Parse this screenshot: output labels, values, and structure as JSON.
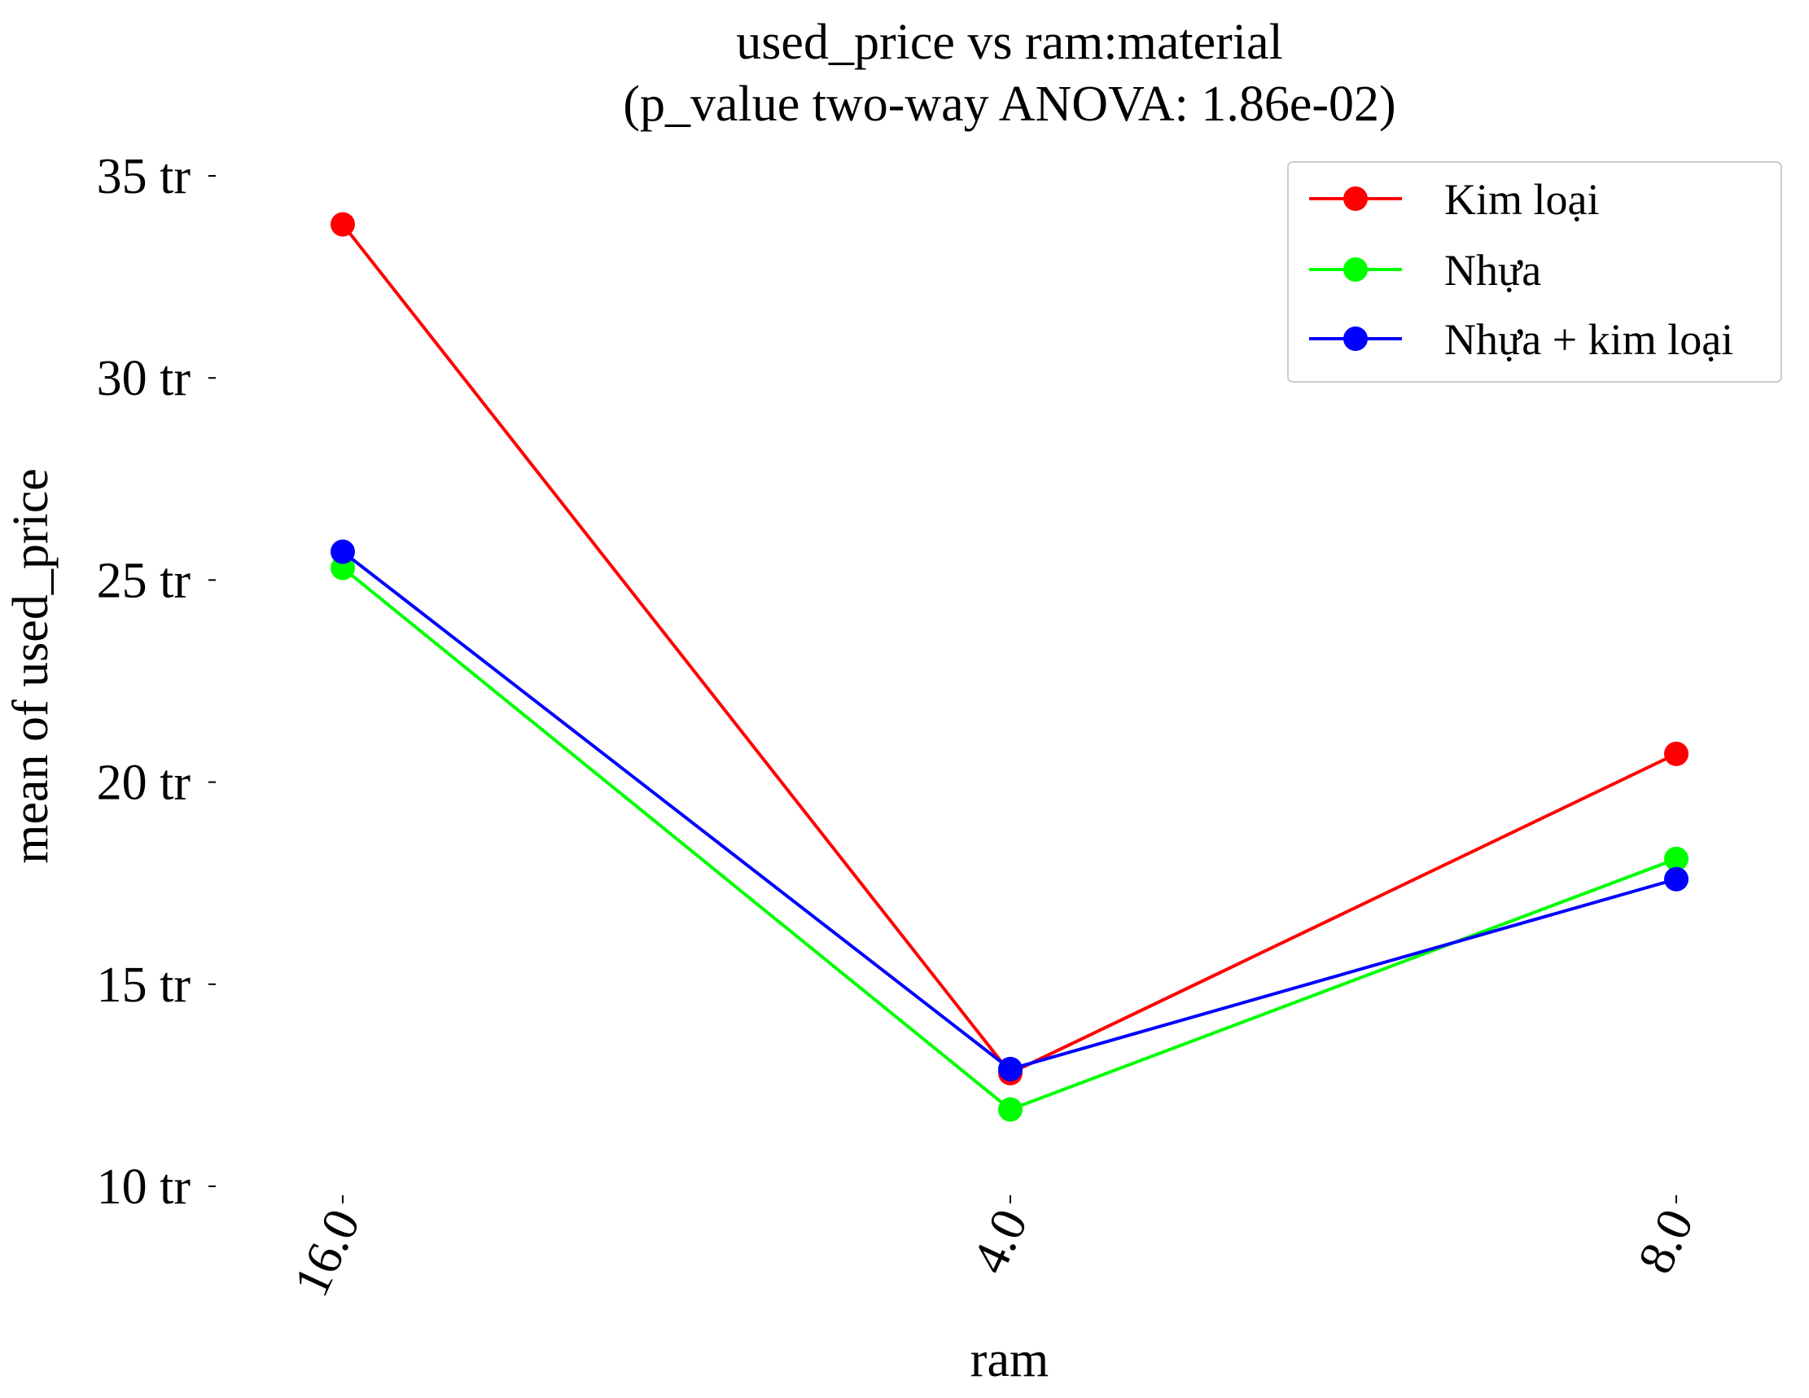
{
  "chart_data": {
    "type": "line",
    "title": "used_price vs ram:material",
    "subtitle": "(p_value two-way ANOVA: 1.86e-02)",
    "xlabel": "ram",
    "ylabel": "mean of used_price",
    "categories": [
      "16.0",
      "4.0",
      "8.0"
    ],
    "y_ticks": [
      10,
      15,
      20,
      25,
      30,
      35
    ],
    "y_tick_suffix": " tr",
    "ylim": [
      10,
      36
    ],
    "grid": false,
    "legend_position": "top-right",
    "series": [
      {
        "name": "Kim loại",
        "color": "#ff0000",
        "values": [
          33.8,
          12.8,
          20.7
        ]
      },
      {
        "name": "Nhựa",
        "color": "#00ff00",
        "values": [
          25.3,
          11.9,
          18.1
        ]
      },
      {
        "name": "Nhựa + kim loại",
        "color": "#0000ff",
        "values": [
          25.7,
          12.9,
          17.6
        ]
      }
    ]
  }
}
